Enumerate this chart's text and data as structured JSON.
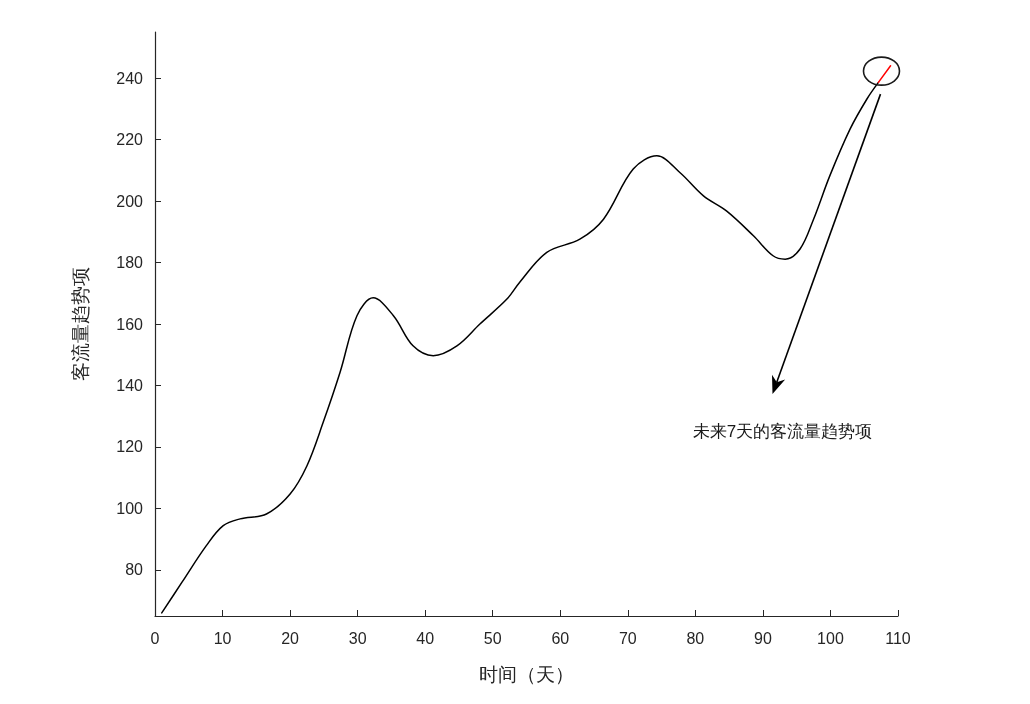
{
  "chart_data": {
    "type": "line",
    "xlabel": "时间（天）",
    "ylabel": "客流量趋势项",
    "series": [
      {
        "color": "#000000",
        "x": [
          1,
          4,
          7.6,
          10.1,
          12.6,
          16.5,
          20,
          22.5,
          24.9,
          27.4,
          29.9,
          32.3,
          35.3,
          38.2,
          41.2,
          44.7,
          48.1,
          52.1,
          54,
          58,
          62.9,
          66.4,
          70.8,
          74.3,
          77.7,
          81.2,
          84.6,
          88.6,
          91.5,
          93.3,
          95.5,
          97.5,
          99.9,
          102.9,
          105.4,
          107.1
        ],
        "values": [
          66,
          76,
          87.9,
          94.4,
          96.6,
          98.2,
          104.7,
          113.9,
          128,
          144.3,
          162.7,
          168.5,
          162.7,
          152.9,
          149.7,
          152.9,
          160,
          168.1,
          173.6,
          183.3,
          187.6,
          194.1,
          210.4,
          214.7,
          209.3,
          201.7,
          196.8,
          188.7,
          182.2,
          181.1,
          184.4,
          194.1,
          208.2,
          223.4,
          233.2,
          238.6
        ]
      },
      {
        "color": "#ff0000",
        "x": [
          107.1,
          108.9
        ],
        "values": [
          238.6,
          244
        ]
      }
    ],
    "xlim": [
      0,
      110
    ],
    "xticks": [
      0,
      10,
      20,
      30,
      40,
      50,
      60,
      70,
      80,
      90,
      100,
      110
    ],
    "ylim": [
      65,
      255
    ],
    "yticks": [
      80,
      100,
      120,
      140,
      160,
      180,
      200,
      220,
      240
    ],
    "line_style": "solid",
    "annotations": [
      "未来7天的客流量趋势项"
    ]
  }
}
